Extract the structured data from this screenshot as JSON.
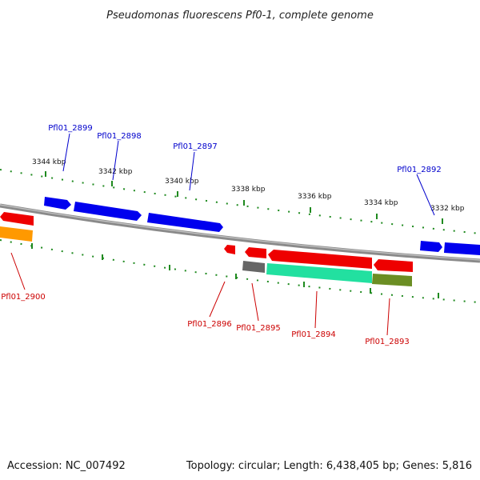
{
  "title": "Pseudomonas fluorescens Pf0-1, complete genome",
  "footer": {
    "accession": "Accession: NC_007492",
    "summary": "Topology: circular; Length: 6,438,405 bp; Genes: 5,816"
  },
  "colors": {
    "backbone": "#8a8a8a",
    "tick": "#1f8a1f",
    "forward_label": "#0000cc",
    "reverse_label": "#cc0000",
    "forward_gene": "#0000ee",
    "reverse_gene": "#ee0000"
  },
  "tick_labels": [
    "3344 kbp",
    "3342 kbp",
    "3340 kbp",
    "3338 kbp",
    "3336 kbp",
    "3334 kbp",
    "3332 kbp"
  ],
  "forward_labels": [
    "Pfl01_2899",
    "Pfl01_2898",
    "Pfl01_2897",
    "Pfl01_2892"
  ],
  "reverse_labels": [
    "Pfl01_2900",
    "Pfl01_2896",
    "Pfl01_2895",
    "Pfl01_2894",
    "Pfl01_2893"
  ],
  "features": [
    {
      "name": "forward-gene-block-1",
      "color": "#0000ee"
    },
    {
      "name": "forward-gene-block-2",
      "color": "#0000ee"
    },
    {
      "name": "forward-gene-block-3",
      "color": "#0000ee"
    },
    {
      "name": "forward-gene-block-4",
      "color": "#0000ee"
    },
    {
      "name": "forward-gene-block-5",
      "color": "#0000ee"
    },
    {
      "name": "reverse-gene-block-left",
      "color": "#ee0000"
    },
    {
      "name": "reverse-gene-block-small",
      "color": "#ee0000"
    },
    {
      "name": "reverse-gene-block-2",
      "color": "#ee0000"
    },
    {
      "name": "reverse-gene-block-long",
      "color": "#ee0000"
    },
    {
      "name": "reverse-gene-block-right",
      "color": "#ee0000"
    },
    {
      "name": "orange-feature-block",
      "color": "#ff9900"
    },
    {
      "name": "gray-feature-block",
      "color": "#666666"
    },
    {
      "name": "teal-feature-block",
      "color": "#22e0a0"
    },
    {
      "name": "olive-feature-block",
      "color": "#6b8e23"
    }
  ]
}
